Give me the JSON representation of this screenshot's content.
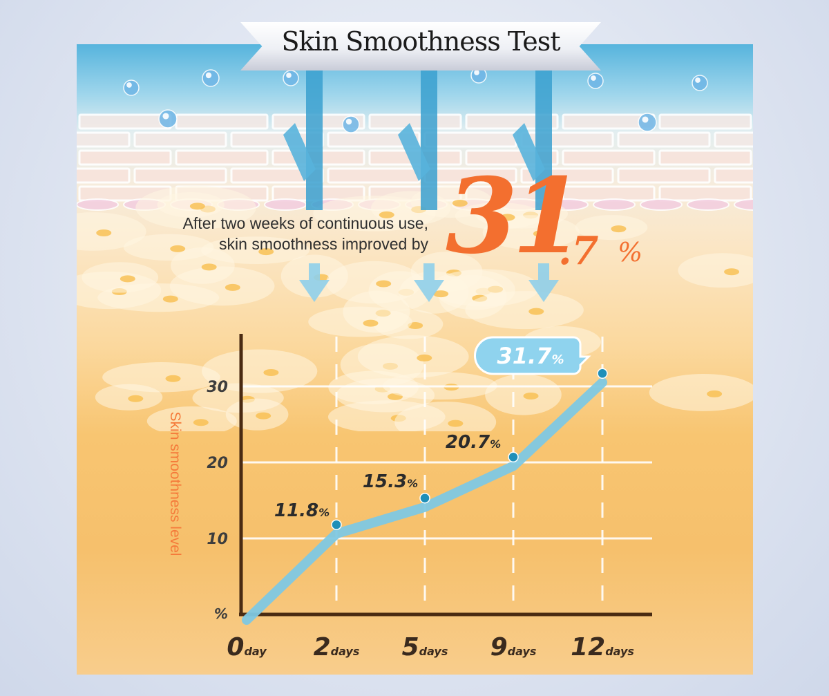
{
  "header": {
    "title": "Skin Smoothness Test"
  },
  "summary": {
    "line1": "After two weeks of continuous use,",
    "line2": "skin smoothness improved by",
    "big_int": "31",
    "big_dec": ".7",
    "big_pct": "%"
  },
  "colors": {
    "accent_orange": "#f36f2f",
    "line_blue": "#7ec8e3",
    "point_blue": "#1f8fb8",
    "axis_brown": "#4a2b12"
  },
  "chart_data": {
    "type": "line",
    "ylabel": "Skin smoothness level",
    "y_zero_label": "%",
    "ylim": [
      0,
      32
    ],
    "y_ticks": [
      10,
      20,
      30
    ],
    "grid": true,
    "x_ticks": [
      {
        "num": "0",
        "unit": "day"
      },
      {
        "num": "2",
        "unit": "days"
      },
      {
        "num": "5",
        "unit": "days"
      },
      {
        "num": "9",
        "unit": "days"
      },
      {
        "num": "12",
        "unit": "days"
      }
    ],
    "values": [
      0,
      11.8,
      15.3,
      20.7,
      31.7
    ],
    "point_labels": [
      null,
      {
        "num": "11.8",
        "pct": "%"
      },
      {
        "num": "15.3",
        "pct": "%"
      },
      {
        "num": "20.7",
        "pct": "%"
      },
      {
        "num": "31.7",
        "pct": "%"
      }
    ]
  }
}
